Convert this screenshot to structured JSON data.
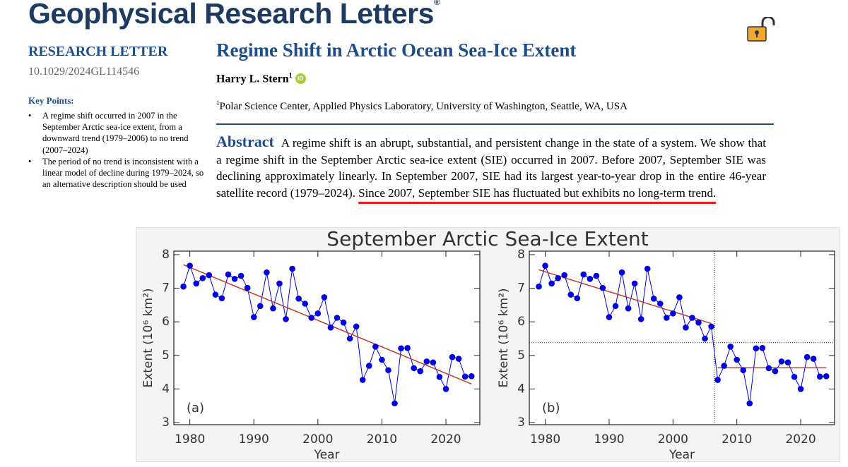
{
  "header": {
    "journal": "Geophysical Research Letters",
    "registered": "®",
    "article_type": "RESEARCH LETTER",
    "doi": "10.1029/2024GL114546"
  },
  "key_points": {
    "heading": "Key Points:",
    "items": [
      "A regime shift occurred in 2007 in the September Arctic sea-ice extent, from a downward trend (1979–2006) to no trend (2007–2024)",
      "The period of no trend is inconsistent with a linear model of decline during 1979–2024, so an alternative description should be used"
    ]
  },
  "article": {
    "title": "Regime Shift in Arctic Ocean Sea-Ice Extent",
    "author": {
      "name": "Harry L. Stern",
      "affiliation_ref": "1",
      "orcid": "iD"
    },
    "affiliation": {
      "ref": "1",
      "text": "Polar Science Center, Applied Physics Laboratory, University of Washington, Seattle, WA, USA"
    },
    "abstract_heading": "Abstract",
    "abstract_text": "A regime shift is an abrupt, substantial, and persistent change in the state of a system. We show that a regime shift in the September Arctic sea-ice extent (SIE) occurred in 2007. Before 2007, September SIE was declining approximately linearly. In September 2007, SIE had its largest year-to-year drop in the entire 46-year satellite record (1979–2024).",
    "abstract_highlight": "Since 2007, September SIE has fluctuated but exhibits no long-term trend."
  },
  "figure": {
    "title": "September Arctic Sea-Ice Extent"
  },
  "chart_data": [
    {
      "type": "line",
      "panel_label": "(a)",
      "x_label": "Year",
      "y_label": "Extent (10⁶ km²)",
      "x": [
        1979,
        1980,
        1981,
        1982,
        1983,
        1984,
        1985,
        1986,
        1987,
        1988,
        1989,
        1990,
        1991,
        1992,
        1993,
        1994,
        1995,
        1996,
        1997,
        1998,
        1999,
        2000,
        2001,
        2002,
        2003,
        2004,
        2005,
        2006,
        2007,
        2008,
        2009,
        2010,
        2011,
        2012,
        2013,
        2014,
        2015,
        2016,
        2017,
        2018,
        2019,
        2020,
        2021,
        2022,
        2023,
        2024
      ],
      "series": [
        {
          "color": "#0000e6",
          "values": [
            7.05,
            7.67,
            7.14,
            7.3,
            7.39,
            6.81,
            6.7,
            7.41,
            7.28,
            7.37,
            7.01,
            6.14,
            6.47,
            7.47,
            6.4,
            7.14,
            6.08,
            7.58,
            6.69,
            6.54,
            6.12,
            6.25,
            6.73,
            5.83,
            6.12,
            5.98,
            5.5,
            5.86,
            4.27,
            4.69,
            5.26,
            4.87,
            4.56,
            3.57,
            5.21,
            5.22,
            4.62,
            4.53,
            4.82,
            4.79,
            4.36,
            4.0,
            4.95,
            4.9,
            4.37,
            4.38
          ]
        }
      ],
      "fit_lines": [
        {
          "color": "#c0392b",
          "x": [
            1979,
            2024
          ],
          "y": [
            7.7,
            4.15
          ]
        }
      ],
      "xlim": [
        1977.5,
        2025.3
      ],
      "ylim": [
        3,
        8
      ],
      "xticks": [
        1980,
        1990,
        2000,
        2010,
        2020
      ],
      "yticks": [
        3,
        4,
        5,
        6,
        7,
        8
      ]
    },
    {
      "type": "line",
      "panel_label": "(b)",
      "x_label": "Year",
      "y_label": "Extent (10⁶ km²)",
      "x": [
        1979,
        1980,
        1981,
        1982,
        1983,
        1984,
        1985,
        1986,
        1987,
        1988,
        1989,
        1990,
        1991,
        1992,
        1993,
        1994,
        1995,
        1996,
        1997,
        1998,
        1999,
        2000,
        2001,
        2002,
        2003,
        2004,
        2005,
        2006,
        2007,
        2008,
        2009,
        2010,
        2011,
        2012,
        2013,
        2014,
        2015,
        2016,
        2017,
        2018,
        2019,
        2020,
        2021,
        2022,
        2023,
        2024
      ],
      "series": [
        {
          "color": "#0000e6",
          "values": [
            7.05,
            7.67,
            7.14,
            7.3,
            7.39,
            6.81,
            6.7,
            7.41,
            7.28,
            7.37,
            7.01,
            6.14,
            6.47,
            7.47,
            6.4,
            7.14,
            6.08,
            7.58,
            6.69,
            6.54,
            6.12,
            6.25,
            6.73,
            5.83,
            6.12,
            5.98,
            5.5,
            5.86,
            4.27,
            4.69,
            5.26,
            4.87,
            4.56,
            3.57,
            5.21,
            5.22,
            4.62,
            4.53,
            4.82,
            4.79,
            4.36,
            4.0,
            4.95,
            4.9,
            4.37,
            4.38
          ]
        }
      ],
      "fit_lines": [
        {
          "color": "#c0392b",
          "x": [
            1979,
            2006
          ],
          "y": [
            7.55,
            5.95
          ]
        },
        {
          "color": "#c0392b",
          "x": [
            2007,
            2024
          ],
          "y": [
            4.63,
            4.63
          ]
        }
      ],
      "vlines": [
        2006.5
      ],
      "hlines": [
        5.38
      ],
      "xlim": [
        1977.5,
        2025.3
      ],
      "ylim": [
        3,
        8
      ],
      "xticks": [
        1980,
        1990,
        2000,
        2010,
        2020
      ],
      "yticks": [
        3,
        4,
        5,
        6,
        7,
        8
      ]
    }
  ]
}
